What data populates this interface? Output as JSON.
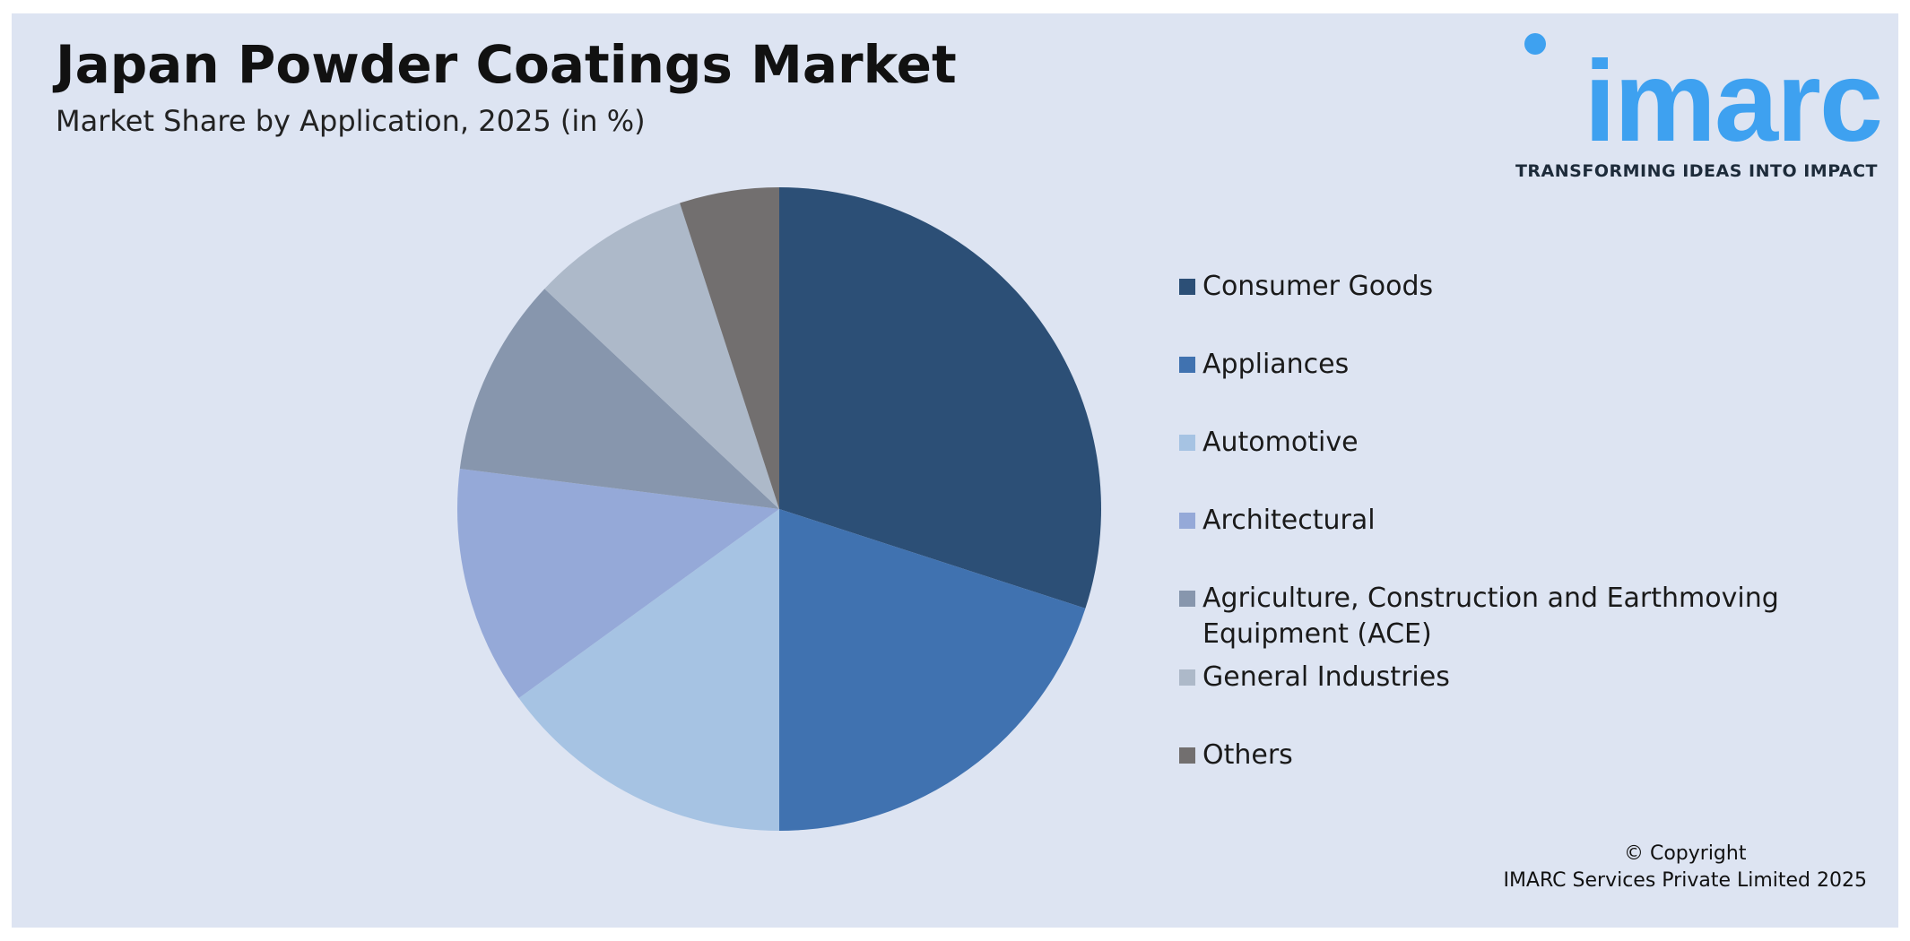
{
  "chart_data": {
    "type": "pie",
    "title": "Japan Powder Coatings Market",
    "subtitle": "Market Share by Application, 2025 (in %)",
    "categories": [
      "Consumer Goods",
      "Appliances",
      "Automotive",
      "Architectural",
      "Agriculture, Construction and Earthmoving Equipment (ACE)",
      "General Industries",
      "Others"
    ],
    "values": [
      30,
      20,
      15,
      12,
      10,
      8,
      5
    ],
    "colors": [
      "#2c4f76",
      "#4072b0",
      "#a6c3e3",
      "#95a9d8",
      "#8796ad",
      "#adb9c9",
      "#726f6f"
    ],
    "legend": "right"
  },
  "logo": {
    "text": "imarc",
    "tagline": "TRANSFORMING IDEAS INTO IMPACT"
  },
  "copyright": [
    "© Copyright",
    "IMARC Services Private Limited 2025"
  ]
}
